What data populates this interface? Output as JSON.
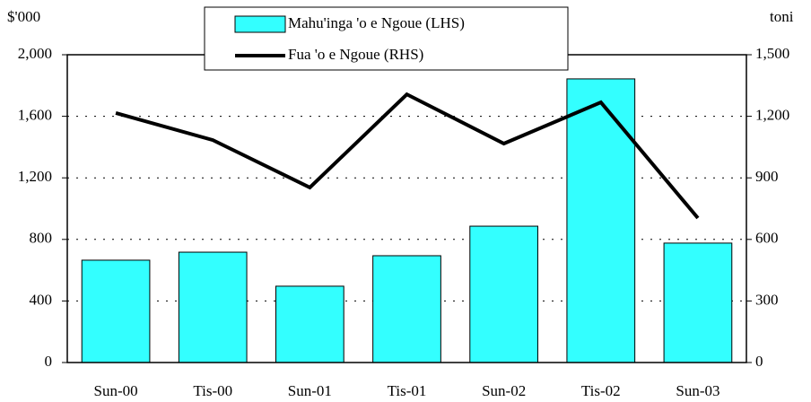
{
  "chart_data": {
    "type": "bar",
    "y_axis_label": "$'000",
    "y2_axis_label": "toni",
    "categories": [
      "Sun-00",
      "Tis-00",
      "Sun-01",
      "Tis-01",
      "Sun-02",
      "Tis-02",
      "Sun-03"
    ],
    "series": [
      {
        "name": "Mahu'inga 'o e Ngoue (LHS)",
        "type": "bar",
        "color": "#33ffff",
        "values": [
          665,
          717,
          496,
          694,
          886,
          1843,
          776
        ]
      },
      {
        "name": "Fua 'o e Ngoue (RHS)",
        "type": "line",
        "axis": "y2",
        "color": "#000000",
        "values": [
          1216,
          1084,
          853,
          1307,
          1067,
          1268,
          704
        ]
      }
    ],
    "ylim": [
      0,
      2000
    ],
    "yticks": [
      0,
      400,
      800,
      {
        "value": 1200,
        "label": "1,200"
      },
      {
        "value": 1600,
        "label": "1,600"
      },
      {
        "value": 2000,
        "label": "2,000"
      }
    ],
    "y2lim": [
      0,
      1500
    ],
    "y2ticks": [
      0,
      300,
      600,
      900,
      {
        "value": 1200,
        "label": "1,200"
      },
      {
        "value": 1500,
        "label": "1,500"
      }
    ],
    "grid": true
  }
}
